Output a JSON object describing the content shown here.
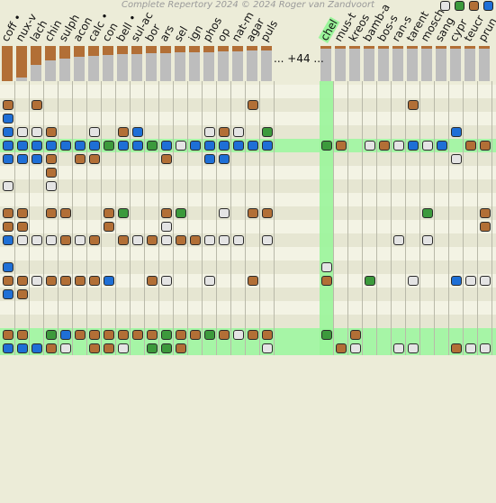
{
  "header": {
    "copyright": "Complete Repertory 2024 © 2024 Roger van Zandvoort",
    "more_label": "... +44 ..."
  },
  "colors": {
    "brown": "#b26f36",
    "blue": "#1e6fd6",
    "green": "#3c9a3c",
    "white": "#e4e4e4",
    "highlight_row": "#a6f5a6",
    "highlight_col": "#9af59a",
    "row_a": "#f3f3e4",
    "row_b": "#e6e6d2"
  },
  "filter_buttons": [
    {
      "name": "filter-white-button",
      "color": "white"
    },
    {
      "name": "filter-green-button",
      "color": "green"
    },
    {
      "name": "filter-brown-button",
      "color": "brown"
    },
    {
      "name": "filter-blue-button",
      "color": "blue"
    }
  ],
  "remedies": [
    {
      "label": "coff •",
      "score": 1.0
    },
    {
      "label": "nux-v",
      "score": 0.9
    },
    {
      "label": "lach",
      "score": 0.55
    },
    {
      "label": "chin",
      "score": 0.42
    },
    {
      "label": "sulph",
      "score": 0.35
    },
    {
      "label": "acon",
      "score": 0.3
    },
    {
      "label": "calc •",
      "score": 0.28
    },
    {
      "label": "con",
      "score": 0.25
    },
    {
      "label": "bell •",
      "score": 0.23
    },
    {
      "label": "sul-ac",
      "score": 0.22
    },
    {
      "label": "bor",
      "score": 0.21
    },
    {
      "label": "ars",
      "score": 0.2
    },
    {
      "label": "sel",
      "score": 0.19
    },
    {
      "label": "ign",
      "score": 0.18
    },
    {
      "label": "phos",
      "score": 0.17
    },
    {
      "label": "op",
      "score": 0.16
    },
    {
      "label": "nat-m",
      "score": 0.15
    },
    {
      "label": "agar",
      "score": 0.14
    },
    {
      "label": "puls",
      "score": 0.13
    },
    {
      "label": "chel",
      "score": 0.08,
      "highlighted": true
    },
    {
      "label": "mus-t",
      "score": 0.06
    },
    {
      "label": "kreos",
      "score": 0.06
    },
    {
      "label": "bamb-a",
      "score": 0.06
    },
    {
      "label": "bos-s",
      "score": 0.06
    },
    {
      "label": "ran-s",
      "score": 0.06
    },
    {
      "label": "tarent",
      "score": 0.06
    },
    {
      "label": "mosch",
      "score": 0.06
    },
    {
      "label": "sang",
      "score": 0.06
    },
    {
      "label": "cypr",
      "score": 0.06
    },
    {
      "label": "teucr",
      "score": 0.06
    },
    {
      "label": "prun",
      "score": 0.06
    }
  ],
  "grid": {
    "rows": [
      "...................................",
      "o.o..............o.......o....",
      "b.............................",
      "bwwo..w.ob....wow.g.........b.",
      "bbbbbbbgbbgbwbbbbbb|go.wowbwb.ooo",
      "bbbo.oo....o..bb...|.........w...b",
      "...o..........................",
      "w..w..........................",
      "..............................",
      "oo.oo..og..og..w.oo.......g...o",
      "oo.....o...w..................o.",
      "bwwwowo.owowoowww.w.....w.w....",
      "..............................",
      "b..................w..........",
      "oowoooob..ow..w..o.o..g..w..bwwo",
      "bo................................",
      "..............................",
      "..............................",
      "oo.gboooooogoogowoo|g.o.........",
      "bbbow.oow.ggo.....w.o|w..ww..oww."
    ]
  }
}
